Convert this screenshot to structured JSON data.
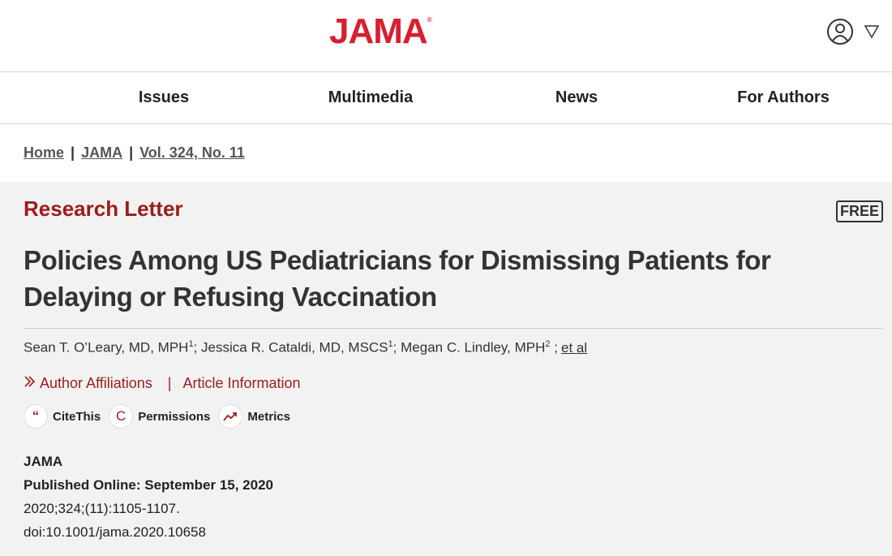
{
  "header": {
    "logo": "JAMA",
    "logo_mark": "®"
  },
  "nav": [
    "Issues",
    "Multimedia",
    "News",
    "For Authors"
  ],
  "breadcrumb": [
    "Home",
    "JAMA",
    "Vol. 324, No. 11"
  ],
  "breadcrumb_separator": "|",
  "article": {
    "type": "Research Letter",
    "badge": "FREE",
    "title": "Policies Among US Pediatricians for Dismissing Patients for Delaying or Refusing Vaccination",
    "authors": [
      {
        "name": "Sean T. O’Leary, MD, MPH",
        "sup": "1"
      },
      {
        "name": "Jessica R. Cataldi, MD, MSCS",
        "sup": "1"
      },
      {
        "name": "Megan C. Lindley, MPH",
        "sup": "2"
      }
    ],
    "author_separator": ";",
    "et_al": "et al",
    "links": [
      "Author Affiliations",
      "Article Information"
    ],
    "link_separator": "|",
    "tools": [
      {
        "icon": "“",
        "label": "CiteThis"
      },
      {
        "icon": "C",
        "label": "Permissions"
      },
      {
        "label": "Metrics"
      }
    ],
    "journal": "JAMA",
    "published": "Published Online: September 15, 2020",
    "citation": "2020;324;(11):1105-1107.",
    "doi": "doi:10.1001/jama.2020.10658"
  }
}
